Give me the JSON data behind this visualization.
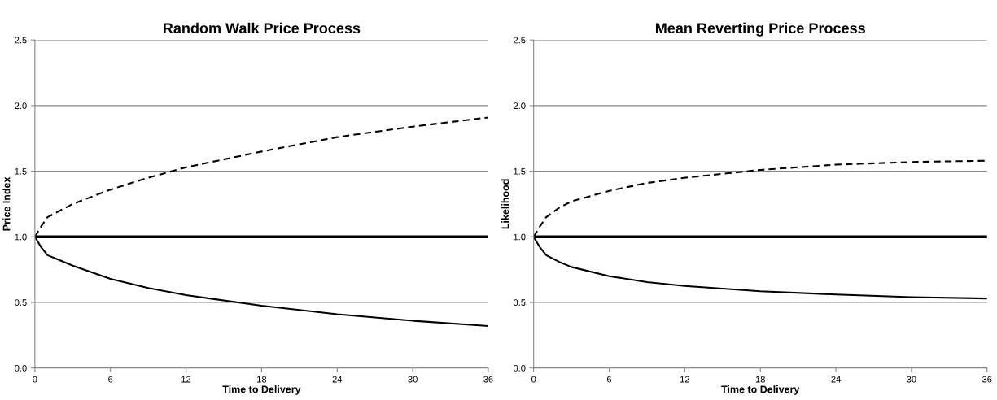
{
  "chart_data": [
    {
      "type": "line",
      "title": "Random Walk Price Process",
      "xlabel": "Time to Delivery",
      "ylabel": "Price Index",
      "x": [
        0,
        0.5,
        1,
        2,
        3,
        6,
        9,
        12,
        18,
        24,
        30,
        36
      ],
      "series": [
        {
          "color": "#000000",
          "line_style": "dashed",
          "values": [
            1.0,
            1.08,
            1.15,
            1.2,
            1.25,
            1.36,
            1.45,
            1.53,
            1.65,
            1.76,
            1.84,
            1.91
          ]
        },
        {
          "color": "#000000",
          "line_style": "solid",
          "values": [
            1.0,
            1.0,
            1.0,
            1.0,
            1.0,
            1.0,
            1.0,
            1.0,
            1.0,
            1.0,
            1.0,
            1.0
          ]
        },
        {
          "color": "#000000",
          "line_style": "solid",
          "values": [
            1.0,
            0.92,
            0.86,
            0.82,
            0.78,
            0.68,
            0.61,
            0.555,
            0.475,
            0.41,
            0.36,
            0.32
          ]
        }
      ],
      "xlim": [
        0,
        36
      ],
      "xticks": [
        0,
        6,
        12,
        18,
        24,
        30,
        36
      ],
      "ylim": [
        0,
        2.5
      ],
      "yticks": [
        {
          "value": 0,
          "label": "0.0"
        },
        {
          "value": 0.5,
          "label": "0.5"
        },
        {
          "value": 1,
          "label": "1.0"
        },
        {
          "value": 1.5,
          "label": "1.5"
        },
        {
          "value": 2,
          "label": "2.0"
        },
        {
          "value": 2.5,
          "label": "2.5"
        }
      ],
      "grid": "y",
      "legend": false,
      "marker": "none"
    },
    {
      "type": "line",
      "title": "Mean Reverting Price Process",
      "xlabel": "Time to Delivery",
      "ylabel": "Likelihood",
      "x": [
        0,
        0.5,
        1,
        2,
        3,
        6,
        9,
        12,
        18,
        24,
        30,
        36
      ],
      "series": [
        {
          "color": "#000000",
          "line_style": "dashed",
          "values": [
            1.0,
            1.08,
            1.15,
            1.22,
            1.27,
            1.35,
            1.41,
            1.45,
            1.51,
            1.55,
            1.57,
            1.58
          ]
        },
        {
          "color": "#000000",
          "line_style": "solid",
          "values": [
            1.0,
            1.0,
            1.0,
            1.0,
            1.0,
            1.0,
            1.0,
            1.0,
            1.0,
            1.0,
            1.0,
            1.0
          ]
        },
        {
          "color": "#000000",
          "line_style": "solid",
          "values": [
            1.0,
            0.92,
            0.86,
            0.81,
            0.77,
            0.7,
            0.655,
            0.625,
            0.585,
            0.56,
            0.54,
            0.53
          ]
        }
      ],
      "xlim": [
        0,
        36
      ],
      "xticks": [
        0,
        6,
        12,
        18,
        24,
        30,
        36
      ],
      "ylim": [
        0,
        2.5
      ],
      "yticks": [
        {
          "value": 0,
          "label": "0.0"
        },
        {
          "value": 0.5,
          "label": "0.5"
        },
        {
          "value": 1,
          "label": "1.0"
        },
        {
          "value": 1.5,
          "label": "1.5"
        },
        {
          "value": 2,
          "label": "2.0"
        },
        {
          "value": 2.5,
          "label": "2.5"
        }
      ],
      "grid": "y",
      "legend": false,
      "marker": "none"
    }
  ]
}
